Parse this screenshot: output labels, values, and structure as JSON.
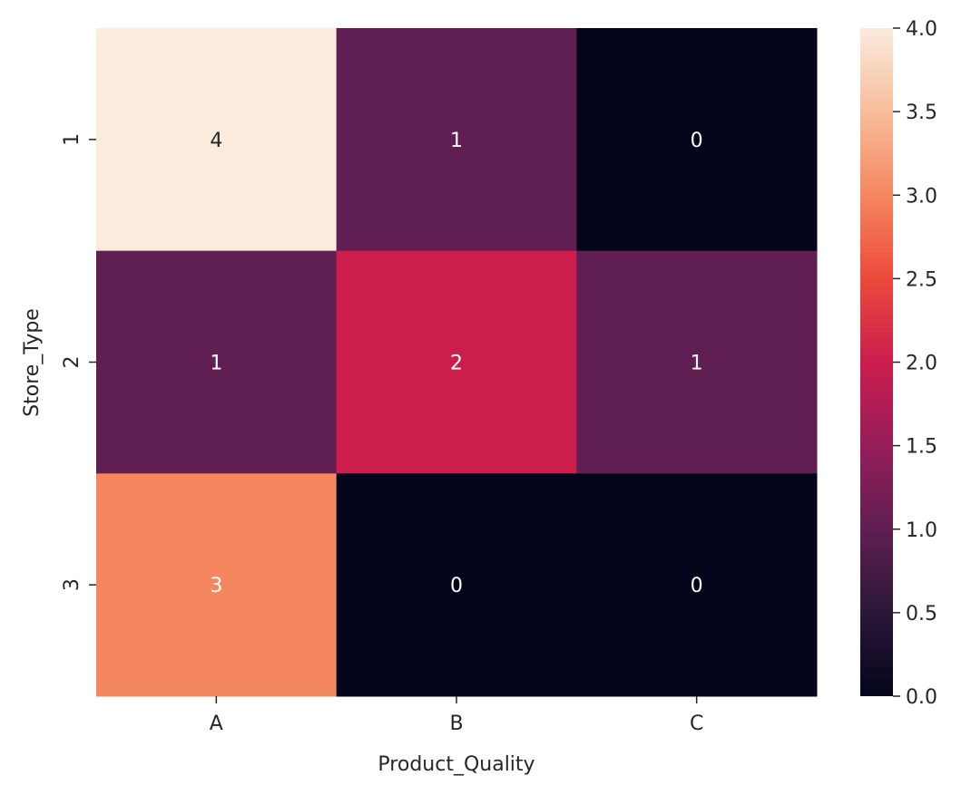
{
  "chart_data": {
    "type": "heatmap",
    "title": "",
    "xlabel": "Product_Quality",
    "ylabel": "Store_Type",
    "x_categories": [
      "A",
      "B",
      "C"
    ],
    "y_categories": [
      "1",
      "2",
      "3"
    ],
    "values": [
      [
        4,
        1,
        0
      ],
      [
        1,
        2,
        1
      ],
      [
        3,
        0,
        0
      ]
    ],
    "annotations": true,
    "colormap": "rocket",
    "color_range": [
      0,
      4
    ],
    "colorbar": {
      "ticks": [
        0.0,
        0.5,
        1.0,
        1.5,
        2.0,
        2.5,
        3.0,
        3.5,
        4.0
      ],
      "tick_labels": [
        "0.0",
        "0.5",
        "1.0",
        "1.5",
        "2.0",
        "2.5",
        "3.0",
        "3.5",
        "4.0"
      ]
    }
  }
}
